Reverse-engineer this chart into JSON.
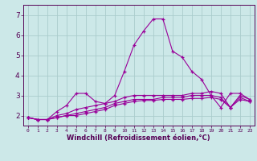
{
  "xlabel": "Windchill (Refroidissement éolien,°C)",
  "bg_color": "#cce8e8",
  "grid_color": "#aacccc",
  "line_color": "#990099",
  "x": [
    0,
    1,
    2,
    3,
    4,
    5,
    6,
    7,
    8,
    9,
    10,
    11,
    12,
    13,
    14,
    15,
    16,
    17,
    18,
    19,
    20,
    21,
    22,
    23
  ],
  "line1": [
    1.9,
    1.8,
    1.8,
    2.2,
    2.5,
    3.1,
    3.1,
    2.7,
    2.6,
    3.0,
    4.2,
    5.5,
    6.2,
    6.8,
    6.8,
    5.2,
    4.9,
    4.2,
    3.8,
    3.0,
    2.4,
    3.1,
    3.1,
    2.8
  ],
  "line2": [
    1.9,
    1.8,
    1.8,
    2.0,
    2.1,
    2.3,
    2.4,
    2.5,
    2.6,
    2.7,
    2.9,
    3.0,
    3.0,
    3.0,
    3.0,
    3.0,
    3.0,
    3.1,
    3.1,
    3.2,
    3.1,
    2.4,
    3.0,
    2.8
  ],
  "line3": [
    1.9,
    1.8,
    1.8,
    1.9,
    2.0,
    2.1,
    2.2,
    2.3,
    2.4,
    2.6,
    2.7,
    2.8,
    2.8,
    2.8,
    2.9,
    2.9,
    2.9,
    3.0,
    3.0,
    3.0,
    2.9,
    2.4,
    2.9,
    2.7
  ],
  "line4": [
    1.9,
    1.8,
    1.8,
    1.9,
    2.0,
    2.0,
    2.1,
    2.2,
    2.3,
    2.5,
    2.6,
    2.7,
    2.75,
    2.75,
    2.8,
    2.8,
    2.8,
    2.85,
    2.85,
    2.9,
    2.8,
    2.4,
    2.8,
    2.7
  ],
  "yticks": [
    2,
    3,
    4,
    5,
    6,
    7
  ],
  "ylim": [
    1.5,
    7.5
  ],
  "xlim": [
    -0.5,
    23.5
  ],
  "xtick_fontsize": 4.5,
  "ytick_fontsize": 6.5,
  "xlabel_fontsize": 6.0,
  "spine_color": "#550055",
  "tick_color": "#550055",
  "label_color": "#550055"
}
